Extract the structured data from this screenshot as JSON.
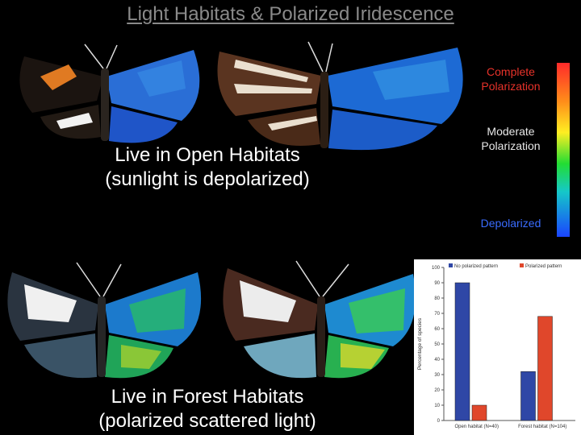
{
  "title": "Light Habitats & Polarized Iridescence",
  "open_caption": {
    "line1": "Live in Open Habitats",
    "line2": "(sunlight is depolarized)"
  },
  "forest_caption": {
    "line1": "Live in Forest Habitats",
    "line2": "(polarized scattered light)"
  },
  "scale_labels": {
    "complete_1": "Complete",
    "complete_2": "Polarization",
    "moderate_1": "Moderate",
    "moderate_2": "Polarization",
    "depolarized": "Depolarized"
  },
  "colors": {
    "blue_series": "#2f47a6",
    "red_series": "#e0472b",
    "scale_top": "#ff2a2a",
    "scale_bottom": "#1a44ff"
  },
  "butterfly_icons": [
    "butterfly-open-1",
    "butterfly-open-2",
    "butterfly-forest-1",
    "butterfly-forest-2"
  ],
  "chart_data": {
    "type": "bar",
    "categories": [
      "Open habitat (N=40)",
      "Forest habitat (N=104)"
    ],
    "series": [
      {
        "name": "No polarized pattern",
        "values": [
          90,
          32
        ],
        "color": "#2f47a6"
      },
      {
        "name": "Polarized pattern",
        "values": [
          10,
          68
        ],
        "color": "#e0472b"
      }
    ],
    "ylabel": "Percentage of species",
    "ylim": [
      0,
      100
    ],
    "yticks": [
      "0",
      "10",
      "20",
      "30",
      "40",
      "50",
      "60",
      "70",
      "80",
      "90",
      "100"
    ],
    "legend": "top"
  }
}
